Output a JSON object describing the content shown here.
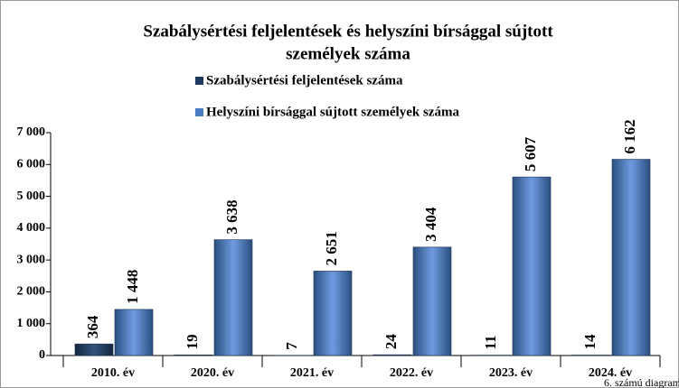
{
  "chart_data": {
    "type": "bar",
    "title": "Szabálysértési feljelentések és helyszíni bírsággal sújtott személyek száma",
    "footnote": "6. számú diagram",
    "categories": [
      "2010. év",
      "2020. év",
      "2021. év",
      "2022. év",
      "2023. év",
      "2024. év"
    ],
    "series": [
      {
        "name": "Szabálysértési feljelentések száma",
        "color": "#1f3a5f",
        "values": [
          364,
          19,
          7,
          24,
          11,
          14
        ]
      },
      {
        "name": "Helyszíni bírsággal sújtott személyek száma",
        "color": "#4a7cc4",
        "values": [
          1448,
          3638,
          2651,
          3404,
          5607,
          6162
        ],
        "value_labels": [
          "1 448",
          "3 638",
          "2 651",
          "3 404",
          "5 607",
          "6 162"
        ]
      }
    ],
    "ylim": [
      0,
      7000
    ],
    "yticks": [
      0,
      {
        "value": 1000,
        "label": "1 000"
      },
      {
        "value": 2000,
        "label": "2 000"
      },
      {
        "value": 3000,
        "label": "3 000"
      },
      {
        "value": 4000,
        "label": "4 000"
      },
      {
        "value": 5000,
        "label": "5 000"
      },
      {
        "value": 6000,
        "label": "6 000"
      },
      {
        "value": 7000,
        "label": "7 000"
      }
    ]
  }
}
